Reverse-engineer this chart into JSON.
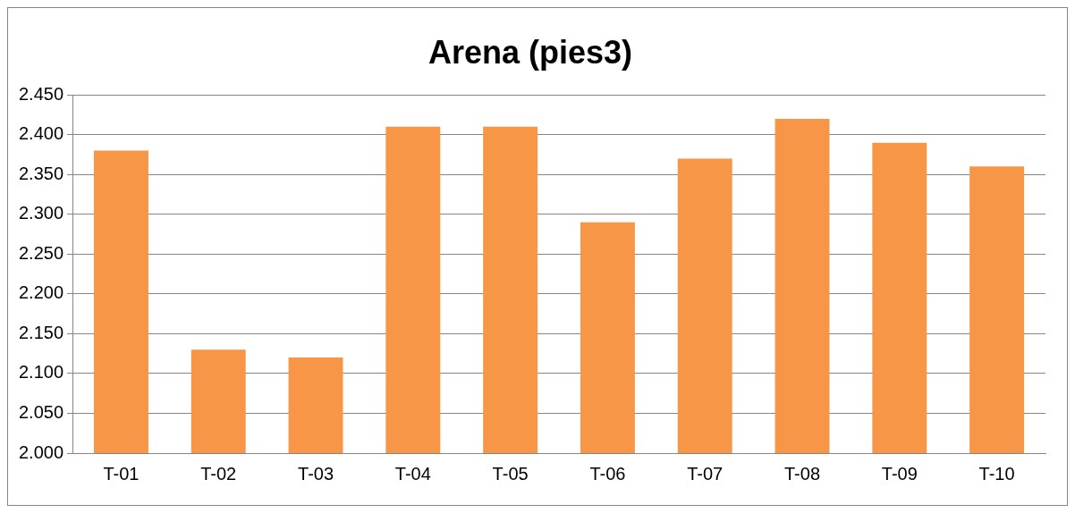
{
  "chart_data": {
    "type": "bar",
    "title": "Arena (pies3)",
    "categories": [
      "T-01",
      "T-02",
      "T-03",
      "T-04",
      "T-05",
      "T-06",
      "T-07",
      "T-08",
      "T-09",
      "T-10"
    ],
    "values": [
      2.38,
      2.13,
      2.12,
      2.41,
      2.41,
      2.29,
      2.37,
      2.42,
      2.39,
      2.36
    ],
    "color": "#f79646",
    "ylim": [
      2.0,
      2.45
    ],
    "yticks": [
      {
        "value": 2.0,
        "label": "2.000"
      },
      {
        "value": 2.05,
        "label": "2.050"
      },
      {
        "value": 2.1,
        "label": "2.100"
      },
      {
        "value": 2.15,
        "label": "2.150"
      },
      {
        "value": 2.2,
        "label": "2.200"
      },
      {
        "value": 2.25,
        "label": "2.250"
      },
      {
        "value": 2.3,
        "label": "2.300"
      },
      {
        "value": 2.35,
        "label": "2.350"
      },
      {
        "value": 2.4,
        "label": "2.400"
      },
      {
        "value": 2.45,
        "label": "2.450"
      }
    ],
    "grid": true
  }
}
